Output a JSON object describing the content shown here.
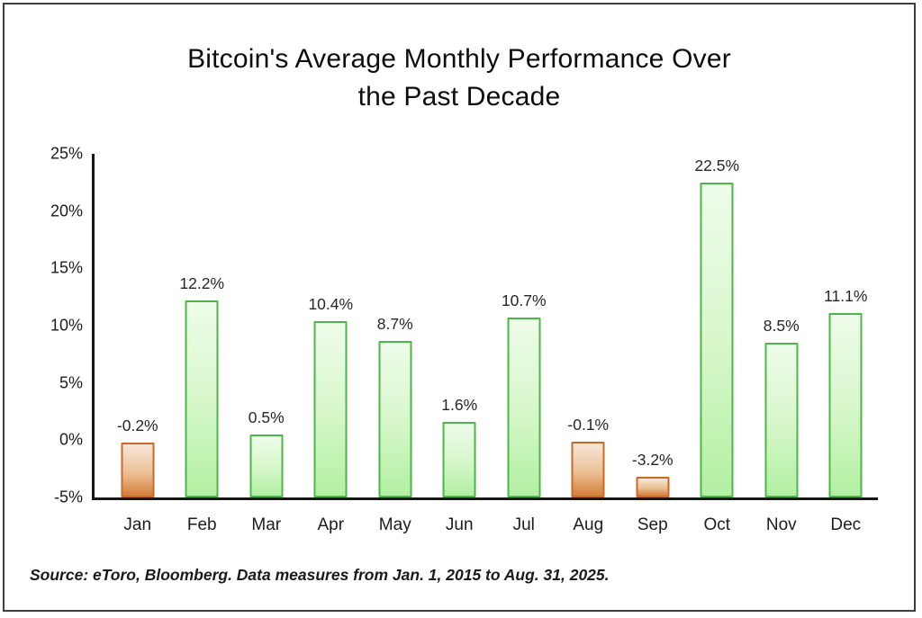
{
  "header": {
    "title_line1": "Bitcoin's Average Monthly Performance Over",
    "title_line2": "the Past Decade"
  },
  "chart_data": {
    "type": "bar",
    "title": "Bitcoin's Average Monthly Performance Over the Past Decade",
    "categories": [
      "Jan",
      "Feb",
      "Mar",
      "Apr",
      "May",
      "Jun",
      "Jul",
      "Aug",
      "Sep",
      "Oct",
      "Nov",
      "Dec"
    ],
    "values": [
      -0.2,
      12.2,
      0.5,
      10.4,
      8.7,
      1.6,
      10.7,
      -0.1,
      -3.2,
      22.5,
      8.5,
      11.1
    ],
    "value_labels": [
      "-0.2%",
      "12.2%",
      "0.5%",
      "10.4%",
      "8.7%",
      "1.6%",
      "10.7%",
      "-0.1%",
      "-3.2%",
      "22.5%",
      "8.5%",
      "11.1%"
    ],
    "xlabel": "",
    "ylabel": "",
    "ylim": [
      -5,
      25
    ],
    "yticks": [
      25,
      20,
      15,
      10,
      5,
      0,
      -5
    ],
    "ytick_labels": [
      "25%",
      "20%",
      "15%",
      "10%",
      "5%",
      "0%",
      "-5%"
    ],
    "grid": false,
    "legend": "none",
    "bars_start_at_axis_min": true,
    "colors": {
      "positive_border": "#4cb748",
      "positive_fill_top": "#eefcea",
      "positive_fill_mid": "#d8f7cc",
      "positive_fill_bottom": "#b2f0a2",
      "negative_border": "#c96b28",
      "negative_fill_top": "#f7e7d8",
      "negative_fill_mid": "#ecc096",
      "negative_fill_bottom": "#d3803a",
      "axis": "#161616",
      "label_text": "#262626"
    }
  },
  "footer": {
    "source": "Source: eToro, Bloomberg. Data measures from Jan. 1, 2015 to Aug. 31, 2025."
  }
}
